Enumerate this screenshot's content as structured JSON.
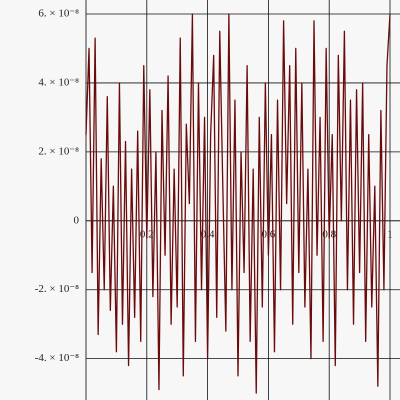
{
  "chart_data": {
    "type": "line",
    "color": "#6b0a0a",
    "grid": true,
    "xlim": [
      0,
      1
    ],
    "ylim": [
      -5.2e-08,
      6e-08
    ],
    "xticks": [
      0.2,
      0.4,
      0.6,
      0.8,
      1
    ],
    "yticks": [
      {
        "value": -4e-08,
        "label": "-4. × 10⁻⁸"
      },
      {
        "value": -2e-08,
        "label": "-2. × 10⁻⁸"
      },
      0,
      {
        "value": 2e-08,
        "label": "2. × 10⁻⁸"
      },
      {
        "value": 4e-08,
        "label": "4. × 10⁻⁸"
      },
      {
        "value": 6e-08,
        "label": "6. × 10⁻⁸"
      }
    ],
    "x": [
      0,
      0.01,
      0.02,
      0.03,
      0.04,
      0.05,
      0.06,
      0.07,
      0.08,
      0.09,
      0.1,
      0.11,
      0.12,
      0.13,
      0.14,
      0.15,
      0.16,
      0.17,
      0.18,
      0.19,
      0.2,
      0.21,
      0.22,
      0.23,
      0.24,
      0.25,
      0.26,
      0.27,
      0.28,
      0.29,
      0.3,
      0.31,
      0.32,
      0.33,
      0.34,
      0.35,
      0.36,
      0.37,
      0.38,
      0.39,
      0.4,
      0.41,
      0.42,
      0.43,
      0.44,
      0.45,
      0.46,
      0.47,
      0.48,
      0.49,
      0.5,
      0.51,
      0.52,
      0.53,
      0.54,
      0.55,
      0.56,
      0.57,
      0.58,
      0.59,
      0.6,
      0.61,
      0.62,
      0.63,
      0.64,
      0.65,
      0.66,
      0.67,
      0.68,
      0.69,
      0.7,
      0.71,
      0.72,
      0.73,
      0.74,
      0.75,
      0.76,
      0.77,
      0.78,
      0.79,
      0.8,
      0.81,
      0.82,
      0.83,
      0.84,
      0.85,
      0.86,
      0.87,
      0.88,
      0.89,
      0.9,
      0.91,
      0.92,
      0.93,
      0.94,
      0.95,
      0.96,
      0.97,
      0.98,
      0.99,
      1
    ],
    "values": [
      2.5e-08,
      5e-08,
      -1.5e-08,
      5.3e-08,
      -3.3e-08,
      1.8e-08,
      -2e-08,
      3.6e-08,
      -2.6e-08,
      1e-08,
      -3.8e-08,
      4e-08,
      -3e-08,
      2.3e-08,
      -4.2e-08,
      1.5e-08,
      -2.8e-08,
      2.6e-08,
      -3.5e-08,
      4.5e-08,
      -5e-09,
      3.8e-08,
      -2.2e-08,
      2e-08,
      -4.9e-08,
      3.2e-08,
      -1e-08,
      4.2e-08,
      -3e-08,
      1.5e-08,
      -2.5e-08,
      5.3e-08,
      -4.5e-08,
      2.8e-08,
      5e-09,
      6e-08,
      -3.5e-08,
      4e-08,
      -2e-08,
      3e-08,
      -4e-08,
      2.5e-08,
      4.8e-08,
      -2.8e-08,
      5.5e-08,
      1e-08,
      -3.2e-08,
      6e-08,
      -2e-08,
      3.5e-08,
      -4.5e-08,
      2e-08,
      -1.5e-08,
      4.5e-08,
      -3.5e-08,
      1.5e-08,
      -5e-08,
      3e-08,
      -2.5e-08,
      4e-08,
      -1e-08,
      2.5e-08,
      -3.8e-08,
      3.5e-08,
      -2e-08,
      5.8e-08,
      5e-09,
      4.5e-08,
      -3e-08,
      5e-08,
      -1.5e-08,
      4e-08,
      -2.5e-08,
      1.5e-08,
      -4e-08,
      5.8e-08,
      -1e-08,
      3e-08,
      -3.5e-08,
      5e-08,
      -5e-09,
      2.5e-08,
      -4.2e-08,
      4.8e-08,
      0,
      5.5e-08,
      -2e-08,
      3.5e-08,
      -3e-08,
      3.8e-08,
      -1.5e-08,
      4e-08,
      -3.5e-08,
      2.5e-08,
      -2.5e-08,
      1e-08,
      -4.8e-08,
      3.2e-08,
      -2e-08,
      4.5e-08,
      6e-08
    ]
  }
}
